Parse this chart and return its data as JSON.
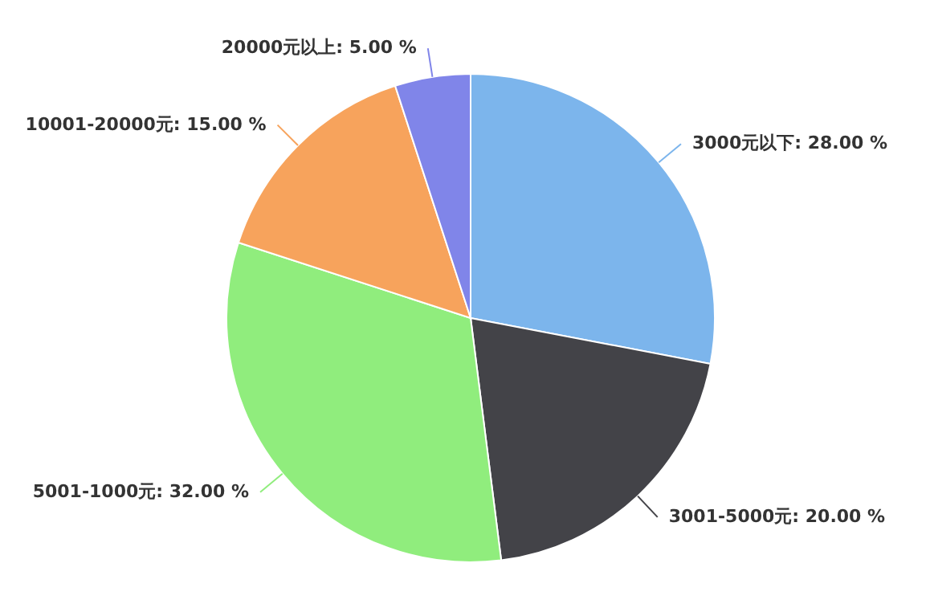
{
  "chart_data": {
    "type": "pie",
    "categories": [
      "3000元以下",
      "3001-5000元",
      "5001-1000元",
      "10001-20000元",
      "20000元以上"
    ],
    "values": [
      28,
      20,
      32,
      15,
      5
    ],
    "value_labels": [
      "28.00 %",
      "20.00 %",
      "32.00 %",
      "15.00 %",
      "5.00 %"
    ],
    "colors": [
      "#7cb5ec",
      "#434348",
      "#90ed7d",
      "#f7a35c",
      "#8085e9"
    ]
  }
}
